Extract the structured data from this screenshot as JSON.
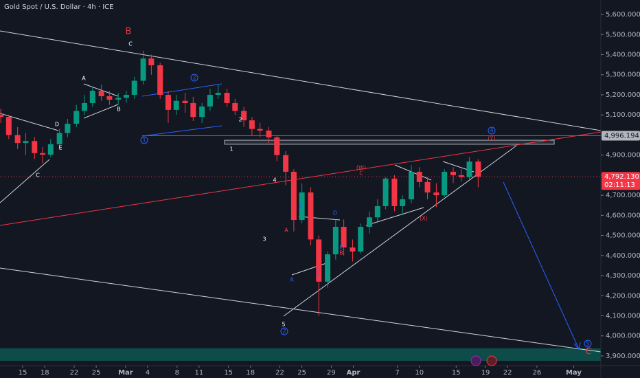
{
  "chart_data": {
    "type": "candlestick",
    "title": "Gold Spot / U.S. Dollar · 4h · ICE",
    "x": [
      -3,
      -1.9,
      -0.7,
      0.4,
      1.6,
      2.7,
      3.8,
      5,
      6.1,
      7.3,
      8.4,
      9.5,
      10.7,
      11.8,
      13,
      14.1,
      15.2,
      16.4,
      17.5,
      18.7,
      19.8,
      20.9,
      22.1,
      23.2,
      24.4,
      25.5,
      26.6,
      27.8,
      28.9,
      30.1,
      31.2,
      32.3,
      33.5,
      34.6,
      35.8,
      36.9,
      38,
      39.2,
      40.3,
      41.5,
      42.6,
      43.7,
      44.9,
      46,
      47.2,
      48.3,
      49.4,
      50.6,
      51.7,
      52.9,
      54,
      55.1,
      56.3,
      57.4,
      58.6,
      59.7,
      60.8,
      62
    ],
    "open": [
      5100,
      5090,
      5000,
      4960,
      4970,
      4910,
      4902,
      4954,
      5010,
      5056,
      5120,
      5159,
      5220,
      5193,
      5176,
      5185,
      5200,
      5270,
      5381,
      5347,
      5200,
      5125,
      5170,
      5159,
      5090,
      5142,
      5200,
      5210,
      5159,
      5120,
      5073,
      5030,
      5022,
      4988,
      4900,
      4817,
      4577,
      4714,
      4480,
      4270,
      4406,
      4543,
      4440,
      4420,
      4543,
      4590,
      4646,
      4783,
      4646,
      4680,
      4817,
      4766,
      4714,
      4700,
      4817,
      4800,
      4790,
      4868
    ],
    "high": [
      5130,
      5100,
      5040,
      5010,
      4990,
      4940,
      4980,
      5030,
      5080,
      5150,
      5200,
      5240,
      5250,
      5220,
      5210,
      5220,
      5290,
      5420,
      5400,
      5360,
      5220,
      5200,
      5210,
      5190,
      5160,
      5230,
      5250,
      5230,
      5180,
      5140,
      5090,
      5060,
      5040,
      5000,
      4920,
      4830,
      4760,
      4740,
      4500,
      4420,
      4580,
      4580,
      4480,
      4560,
      4620,
      4680,
      4790,
      4800,
      4700,
      4850,
      4840,
      4790,
      4760,
      4830,
      4840,
      4830,
      4890,
      4880
    ],
    "low": [
      5060,
      4980,
      4930,
      4900,
      4880,
      4860,
      4890,
      4940,
      4990,
      5040,
      5100,
      5140,
      5170,
      5150,
      5150,
      5160,
      5180,
      5250,
      5300,
      5180,
      5060,
      5100,
      5110,
      5070,
      5060,
      5120,
      5180,
      5140,
      5100,
      5040,
      5000,
      4990,
      4960,
      4870,
      4750,
      4520,
      4560,
      4450,
      4100,
      4240,
      4380,
      4400,
      4370,
      4410,
      4510,
      4570,
      4630,
      4620,
      4600,
      4660,
      4740,
      4680,
      4640,
      4690,
      4760,
      4770,
      4780,
      4740
    ],
    "close": [
      5090,
      5000,
      4960,
      4970,
      4910,
      4902,
      4954,
      5010,
      5056,
      5120,
      5159,
      5220,
      5193,
      5176,
      5185,
      5200,
      5270,
      5381,
      5347,
      5200,
      5125,
      5170,
      5159,
      5090,
      5142,
      5200,
      5210,
      5159,
      5120,
      5073,
      5030,
      5022,
      4988,
      4900,
      4817,
      4577,
      4714,
      4480,
      4270,
      4406,
      4543,
      4440,
      4420,
      4543,
      4590,
      4646,
      4783,
      4646,
      4680,
      4817,
      4766,
      4714,
      4700,
      4817,
      4800,
      4790,
      4868,
      4792
    ],
    "up_color": "#089981",
    "down_color": "#f23645",
    "xlim": [
      -3.1,
      78.7
    ],
    "ylim": [
      3852,
      5672
    ],
    "xticks": [
      {
        "value": 0,
        "label": "15"
      },
      {
        "value": 3,
        "label": "18"
      },
      {
        "value": 7,
        "label": "22"
      },
      {
        "value": 10,
        "label": "25"
      },
      {
        "value": 14,
        "label": "Mar"
      },
      {
        "value": 17,
        "label": "4"
      },
      {
        "value": 21,
        "label": "8"
      },
      {
        "value": 24,
        "label": "11"
      },
      {
        "value": 28,
        "label": "15"
      },
      {
        "value": 31,
        "label": "18"
      },
      {
        "value": 35,
        "label": "22"
      },
      {
        "value": 38,
        "label": "25"
      },
      {
        "value": 42,
        "label": "29"
      },
      {
        "value": 45,
        "label": "Apr"
      },
      {
        "value": 51,
        "label": "7"
      },
      {
        "value": 54,
        "label": "10"
      },
      {
        "value": 59,
        "label": "15"
      },
      {
        "value": 63,
        "label": "19"
      },
      {
        "value": 66,
        "label": "22"
      },
      {
        "value": 70,
        "label": "26"
      },
      {
        "value": 75,
        "label": "May"
      }
    ],
    "yticks": [
      {
        "value": 3900,
        "label": "3,900.000"
      },
      {
        "value": 4000,
        "label": "4,000.000"
      },
      {
        "value": 4100,
        "label": "4,100.000"
      },
      {
        "value": 4200,
        "label": "4,200.000"
      },
      {
        "value": 4300,
        "label": "4,300.000"
      },
      {
        "value": 4400,
        "label": "4,400.000"
      },
      {
        "value": 4500,
        "label": "4,500.000"
      },
      {
        "value": 4600,
        "label": "4,600.000"
      },
      {
        "value": 4700,
        "label": "4,700.000"
      },
      {
        "value": 4800,
        "label": "4,800.000"
      },
      {
        "value": 4900,
        "label": "4,900.000"
      },
      {
        "value": 5000,
        "label": "5,000.000"
      },
      {
        "value": 5100,
        "label": "5,100.000"
      },
      {
        "value": 5200,
        "label": "5,200.000"
      },
      {
        "value": 5300,
        "label": "5,300.000"
      },
      {
        "value": 5400,
        "label": "5,400.000"
      },
      {
        "value": 5500,
        "label": "5,500.000"
      },
      {
        "value": 5600,
        "label": "5,600.000"
      }
    ],
    "level": {
      "value": 4996.194,
      "label": "4,996.194"
    },
    "last_price": {
      "value": 4792.13,
      "label": "4,792.130",
      "countdown": "02:11:13"
    },
    "resistance_box": [
      4954,
      4974
    ],
    "support_zone": [
      3876,
      3938
    ],
    "annotations": [
      {
        "text": "B",
        "color": "#f23645",
        "circled": false
      },
      {
        "text": "C",
        "color": "#ffffff",
        "circled": false
      },
      {
        "text": "A",
        "color": "#ffffff",
        "circled": false
      },
      {
        "text": "B",
        "color": "#ffffff",
        "circled": false
      },
      {
        "text": "D",
        "color": "#ffffff",
        "circled": false
      },
      {
        "text": "E",
        "color": "#ffffff",
        "circled": false
      },
      {
        "text": "C",
        "color": "#ffffff",
        "circled": false
      },
      {
        "text": "2",
        "color": "#2962ff",
        "circled": true
      },
      {
        "text": "1",
        "color": "#2962ff",
        "circled": true
      },
      {
        "text": "2",
        "color": "#ffffff",
        "circled": false
      },
      {
        "text": "1",
        "color": "#ffffff",
        "circled": false
      },
      {
        "text": "4",
        "color": "#ffffff",
        "circled": false
      },
      {
        "text": "3",
        "color": "#ffffff",
        "circled": false
      },
      {
        "text": "5",
        "color": "#ffffff",
        "circled": false
      },
      {
        "text": "2",
        "color": "#2962ff",
        "circled": true
      },
      {
        "text": "A",
        "color": "#f23645",
        "circled": false
      },
      {
        "text": "A",
        "color": "#2962ff",
        "circled": false
      },
      {
        "text": "B",
        "color": "#2962ff",
        "circled": false
      },
      {
        "text": "C",
        "color": "#2962ff",
        "circled": false
      },
      {
        "text": "D",
        "color": "#2962ff",
        "circled": false
      },
      {
        "text": "E",
        "color": "#2962ff",
        "circled": false
      },
      {
        "text": "B",
        "color": "#f23645",
        "circled": false
      },
      {
        "text": "(W)",
        "color": "#f23645",
        "circled": false
      },
      {
        "text": "C",
        "color": "#f23645",
        "circled": false
      },
      {
        "text": "(X)",
        "color": "#f23645",
        "circled": false
      },
      {
        "text": "4",
        "color": "#2962ff",
        "circled": true
      },
      {
        "text": "(Y)",
        "color": "#f23645",
        "circled": false
      },
      {
        "text": "5",
        "color": "#2962ff",
        "circled": true
      },
      {
        "text": "C",
        "color": "#f23645",
        "circled": false
      }
    ]
  }
}
